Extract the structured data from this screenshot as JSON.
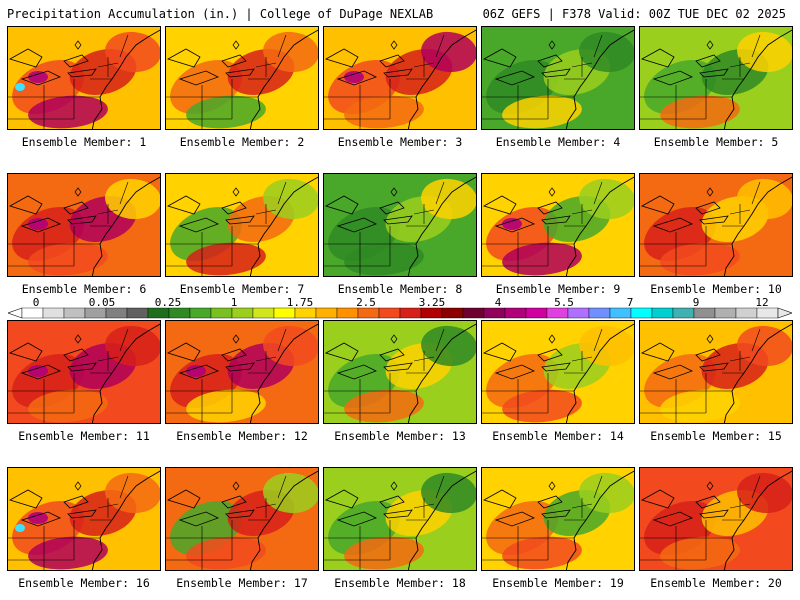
{
  "header": {
    "left_title": "Precipitation Accumulation (in.) | College of DuPage NEXLAB",
    "right_title": "06Z GEFS | F378 Valid: 00Z TUE DEC 02 2025"
  },
  "label_prefix": "Ensemble Member: ",
  "members": [
    {
      "number": "1",
      "label": "Ensemble Member: 1",
      "base": "#ffc000",
      "blobs": [
        "#f24a1e",
        "#d7201a",
        "#b0005a",
        "#f24a1e"
      ],
      "cyan": true,
      "magenta": true
    },
    {
      "number": "2",
      "label": "Ensemble Member: 2",
      "base": "#ffd200",
      "blobs": [
        "#f46a12",
        "#d7201a",
        "#49a82a",
        "#f46a12"
      ],
      "cyan": false,
      "magenta": false
    },
    {
      "number": "3",
      "label": "Ensemble Member: 3",
      "base": "#ffc000",
      "blobs": [
        "#f24a1e",
        "#d7201a",
        "#f46a12",
        "#b0005a"
      ],
      "cyan": false,
      "magenta": true
    },
    {
      "number": "4",
      "label": "Ensemble Member: 4",
      "base": "#49a82a",
      "blobs": [
        "#2f8a24",
        "#9bcf1e",
        "#ffd200",
        "#2f8a24"
      ],
      "cyan": false,
      "magenta": false
    },
    {
      "number": "5",
      "label": "Ensemble Member: 5",
      "base": "#9bcf1e",
      "blobs": [
        "#49a82a",
        "#2f8a24",
        "#f46a12",
        "#ffd200"
      ],
      "cyan": false,
      "magenta": false
    },
    {
      "number": "6",
      "label": "Ensemble Member: 6",
      "base": "#f46a12",
      "blobs": [
        "#d7201a",
        "#b0005a",
        "#f24a1e",
        "#ffd200"
      ],
      "cyan": false,
      "magenta": true
    },
    {
      "number": "7",
      "label": "Ensemble Member: 7",
      "base": "#ffd200",
      "blobs": [
        "#49a82a",
        "#f46a12",
        "#d7201a",
        "#9bcf1e"
      ],
      "cyan": false,
      "magenta": false
    },
    {
      "number": "8",
      "label": "Ensemble Member: 8",
      "base": "#49a82a",
      "blobs": [
        "#2f8a24",
        "#9bcf1e",
        "#2f8a24",
        "#ffd200"
      ],
      "cyan": false,
      "magenta": false
    },
    {
      "number": "9",
      "label": "Ensemble Member: 9",
      "base": "#ffd200",
      "blobs": [
        "#f24a1e",
        "#49a82a",
        "#b0005a",
        "#9bcf1e"
      ],
      "cyan": false,
      "magenta": true
    },
    {
      "number": "10",
      "label": "Ensemble Member: 10",
      "base": "#f46a12",
      "blobs": [
        "#d7201a",
        "#ffd200",
        "#f24a1e",
        "#ffc000"
      ],
      "cyan": false,
      "magenta": false
    },
    {
      "number": "11",
      "label": "Ensemble Member: 11",
      "base": "#f24a1e",
      "blobs": [
        "#d7201a",
        "#b0005a",
        "#f46a12",
        "#d7201a"
      ],
      "cyan": false,
      "magenta": true
    },
    {
      "number": "12",
      "label": "Ensemble Member: 12",
      "base": "#f46a12",
      "blobs": [
        "#d7201a",
        "#b0005a",
        "#ffd200",
        "#f24a1e"
      ],
      "cyan": false,
      "magenta": true
    },
    {
      "number": "13",
      "label": "Ensemble Member: 13",
      "base": "#9bcf1e",
      "blobs": [
        "#49a82a",
        "#ffd200",
        "#f46a12",
        "#2f8a24"
      ],
      "cyan": false,
      "magenta": false
    },
    {
      "number": "14",
      "label": "Ensemble Member: 14",
      "base": "#ffd200",
      "blobs": [
        "#f46a12",
        "#9bcf1e",
        "#f24a1e",
        "#ffc000"
      ],
      "cyan": false,
      "magenta": false
    },
    {
      "number": "15",
      "label": "Ensemble Member: 15",
      "base": "#ffc000",
      "blobs": [
        "#f46a12",
        "#d7201a",
        "#ffd200",
        "#f24a1e"
      ],
      "cyan": false,
      "magenta": false
    },
    {
      "number": "16",
      "label": "Ensemble Member: 16",
      "base": "#ffc000",
      "blobs": [
        "#f24a1e",
        "#d7201a",
        "#b0005a",
        "#f46a12"
      ],
      "cyan": true,
      "magenta": true
    },
    {
      "number": "17",
      "label": "Ensemble Member: 17",
      "base": "#f46a12",
      "blobs": [
        "#49a82a",
        "#d7201a",
        "#f24a1e",
        "#9bcf1e"
      ],
      "cyan": false,
      "magenta": false
    },
    {
      "number": "18",
      "label": "Ensemble Member: 18",
      "base": "#9bcf1e",
      "blobs": [
        "#49a82a",
        "#ffd200",
        "#f46a12",
        "#2f8a24"
      ],
      "cyan": false,
      "magenta": false
    },
    {
      "number": "19",
      "label": "Ensemble Member: 19",
      "base": "#ffd200",
      "blobs": [
        "#f46a12",
        "#49a82a",
        "#f24a1e",
        "#9bcf1e"
      ],
      "cyan": false,
      "magenta": false
    },
    {
      "number": "20",
      "label": "Ensemble Member: 20",
      "base": "#f24a1e",
      "blobs": [
        "#d7201a",
        "#ffc000",
        "#f46a12",
        "#d7201a"
      ],
      "cyan": false,
      "magenta": false
    }
  ],
  "color_scale": {
    "unit": "in.",
    "labels": [
      "0",
      "0.05",
      "0.25",
      "1",
      "1.75",
      "2.5",
      "3.25",
      "4",
      "5.5",
      "7",
      "9",
      "12"
    ],
    "colors": [
      "#ffffff",
      "#e0e0e0",
      "#c0c0c0",
      "#a0a0a0",
      "#808080",
      "#606060",
      "#1e6e1e",
      "#2f8a24",
      "#49a82a",
      "#7ac020",
      "#9bcf1e",
      "#d2e61e",
      "#ffff00",
      "#ffd200",
      "#ffb000",
      "#ff9000",
      "#f46a12",
      "#f24a1e",
      "#d7201a",
      "#b00000",
      "#8c0000",
      "#6e0030",
      "#90005a",
      "#b0007a",
      "#d000a0",
      "#e040e0",
      "#b070ff",
      "#7090ff",
      "#40c0ff",
      "#00ffff",
      "#00d0d0",
      "#40b0b0",
      "#909090",
      "#b0b0b0",
      "#d0d0d0",
      "#e8e8e8"
    ]
  }
}
